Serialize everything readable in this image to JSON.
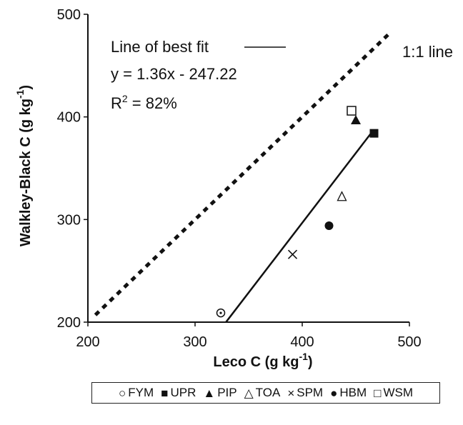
{
  "chart_data": {
    "type": "scatter",
    "xlabel": "Leco C (g kg",
    "xlabel_sup": "-1",
    "xlabel_end": ")",
    "ylabel": "Walkley-Black C (g kg",
    "ylabel_sup": "-1",
    "ylabel_end": ")",
    "xlim": [
      200,
      500
    ],
    "ylim": [
      200,
      500
    ],
    "x_ticks": [
      "200",
      "300",
      "400",
      "500"
    ],
    "y_ticks": [
      "200",
      "300",
      "400",
      "500"
    ],
    "series": [
      {
        "name": "FYM",
        "marker": "circle-dot",
        "points": [
          [
            324,
            209
          ]
        ]
      },
      {
        "name": "UPR",
        "marker": "filled-square",
        "points": [
          [
            467,
            384
          ]
        ]
      },
      {
        "name": "PIP",
        "marker": "filled-triangle",
        "points": [
          [
            450,
            397
          ]
        ]
      },
      {
        "name": "TOA",
        "marker": "open-triangle",
        "points": [
          [
            437,
            322
          ]
        ]
      },
      {
        "name": "SPM",
        "marker": "cross",
        "points": [
          [
            391,
            266
          ]
        ]
      },
      {
        "name": "HBM",
        "marker": "filled-circle",
        "points": [
          [
            425,
            294
          ]
        ]
      },
      {
        "name": "WSM",
        "marker": "open-square",
        "points": [
          [
            446,
            406
          ]
        ]
      }
    ],
    "fit_line": {
      "slope": 1.36,
      "intercept": -247.22,
      "x_range": [
        329,
        466
      ]
    },
    "one_to_one": {
      "x_range": [
        207,
        483
      ]
    },
    "annotations": {
      "fit_label": "Line of best fit",
      "equation": "y = 1.36x - 247.22",
      "r2_prefix": "R",
      "r2_sup": "2",
      "r2_suffix": " = 82%",
      "one_to_one_label": "1:1 line"
    }
  },
  "legend": [
    {
      "symbol": "○",
      "label": "FYM"
    },
    {
      "symbol": "■",
      "label": "UPR"
    },
    {
      "symbol": "▲",
      "label": "PIP"
    },
    {
      "symbol": "△",
      "label": "TOA"
    },
    {
      "symbol": "×",
      "label": "SPM"
    },
    {
      "symbol": "●",
      "label": "HBM"
    },
    {
      "symbol": "□",
      "label": "WSM"
    }
  ]
}
